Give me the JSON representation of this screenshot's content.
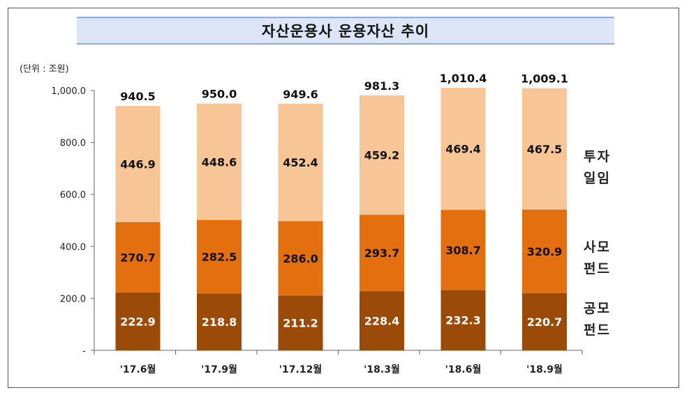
{
  "unit_label": "(단위 : 조원)",
  "legend": {
    "invest": [
      "투자",
      "일임"
    ],
    "private": [
      "사모",
      "펀드"
    ],
    "public": [
      "공모",
      "펀드"
    ]
  },
  "colors": {
    "public": "#9c4a07",
    "private": "#e46f0f",
    "invest": "#f8c597",
    "title_bg": "#dde6f6"
  },
  "chart_data": {
    "type": "bar",
    "stacked": true,
    "title": "자산운용사 운용자산 추이",
    "categories": [
      "'17.6월",
      "'17.9월",
      "'17.12월",
      "'18.3월",
      "'18.6월",
      "'18.9월"
    ],
    "y_ticks": [
      "-",
      "200.0",
      "400.0",
      "600.0",
      "800.0",
      "1,000.0"
    ],
    "ylim": [
      0,
      1000
    ],
    "series": [
      {
        "name": "공모 펀드",
        "values": [
          222.9,
          218.8,
          211.2,
          228.4,
          232.3,
          220.7
        ],
        "labels": [
          "222.9",
          "218.8",
          "211.2",
          "228.4",
          "232.3",
          "220.7"
        ]
      },
      {
        "name": "사모 펀드",
        "values": [
          270.7,
          282.5,
          286.0,
          293.7,
          308.7,
          320.9
        ],
        "labels": [
          "270.7",
          "282.5",
          "286.0",
          "293.7",
          "308.7",
          "320.9"
        ]
      },
      {
        "name": "투자 일임",
        "values": [
          446.9,
          448.6,
          452.4,
          459.2,
          469.4,
          467.5
        ],
        "labels": [
          "446.9",
          "448.6",
          "452.4",
          "459.2",
          "469.4",
          "467.5"
        ]
      }
    ],
    "totals": [
      "940.5",
      "950.0",
      "949.6",
      "981.3",
      "1,010.4",
      "1,009.1"
    ],
    "grid": false,
    "legend_position": "right"
  }
}
